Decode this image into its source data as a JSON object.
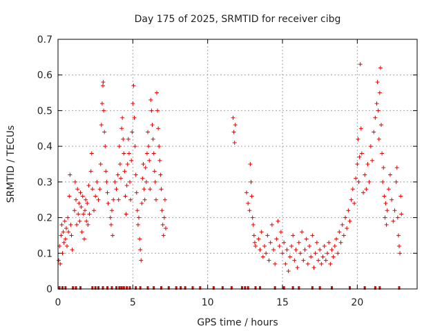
{
  "chart_data": {
    "type": "scatter",
    "title": "Day 175 of 2025, SRMTID for receiver cibg",
    "xlabel": "GPS time / hours",
    "ylabel": "SRMTID / TECUs",
    "xlim": [
      0,
      24
    ],
    "ylim": [
      0,
      0.7
    ],
    "xticks": [
      0,
      5,
      10,
      15,
      20
    ],
    "xtick_labels": [
      "0",
      "5",
      "10",
      "15",
      "20"
    ],
    "yticks": [
      0,
      0.1,
      0.2,
      0.3,
      0.4,
      0.5,
      0.6,
      0.7
    ],
    "ytick_labels": [
      "0",
      "0.1",
      "0.2",
      "0.3",
      "0.4",
      "0.5",
      "0.6",
      "0.7"
    ],
    "grid": true,
    "marker": "plus",
    "color": "#e00000",
    "series": [
      {
        "name": "SRMTID",
        "points": [
          [
            0.05,
            0.08
          ],
          [
            0.1,
            0.12
          ],
          [
            0.15,
            0.07
          ],
          [
            0.2,
            0.15
          ],
          [
            0.25,
            0.18
          ],
          [
            0.3,
            0.1
          ],
          [
            0.35,
            0.16
          ],
          [
            0.4,
            0.13
          ],
          [
            0.45,
            0.19
          ],
          [
            0.5,
            0.14
          ],
          [
            0.55,
            0.17
          ],
          [
            0.6,
            0.12
          ],
          [
            0.65,
            0.2
          ],
          [
            0.7,
            0.16
          ],
          [
            0.75,
            0.26
          ],
          [
            0.8,
            0.32
          ],
          [
            0.85,
            0.18
          ],
          [
            0.9,
            0.15
          ],
          [
            0.95,
            0.11
          ],
          [
            1.1,
            0.22
          ],
          [
            1.15,
            0.3
          ],
          [
            1.2,
            0.25
          ],
          [
            1.25,
            0.18
          ],
          [
            1.3,
            0.28
          ],
          [
            1.35,
            0.21
          ],
          [
            1.4,
            0.24
          ],
          [
            1.45,
            0.19
          ],
          [
            1.5,
            0.27
          ],
          [
            1.55,
            0.23
          ],
          [
            1.6,
            0.16
          ],
          [
            1.65,
            0.26
          ],
          [
            1.7,
            0.21
          ],
          [
            1.75,
            0.14
          ],
          [
            1.8,
            0.22
          ],
          [
            1.85,
            0.25
          ],
          [
            1.9,
            0.19
          ],
          [
            1.95,
            0.24
          ],
          [
            2.0,
            0.18
          ],
          [
            2.05,
            0.29
          ],
          [
            2.1,
            0.21
          ],
          [
            2.2,
            0.33
          ],
          [
            2.25,
            0.38
          ],
          [
            2.3,
            0.28
          ],
          [
            2.4,
            0.22
          ],
          [
            2.5,
            0.26
          ],
          [
            2.6,
            0.3
          ],
          [
            2.7,
            0.25
          ],
          [
            2.8,
            0.28
          ],
          [
            2.85,
            0.35
          ],
          [
            2.9,
            0.46
          ],
          [
            2.95,
            0.52
          ],
          [
            3.0,
            0.57
          ],
          [
            3.02,
            0.58
          ],
          [
            3.05,
            0.5
          ],
          [
            3.1,
            0.44
          ],
          [
            3.15,
            0.4
          ],
          [
            3.2,
            0.33
          ],
          [
            3.25,
            0.3
          ],
          [
            3.3,
            0.27
          ],
          [
            3.35,
            0.24
          ],
          [
            3.5,
            0.2
          ],
          [
            3.55,
            0.18
          ],
          [
            3.6,
            0.22
          ],
          [
            3.65,
            0.15
          ],
          [
            3.7,
            0.25
          ],
          [
            3.8,
            0.3
          ],
          [
            3.9,
            0.28
          ],
          [
            4.0,
            0.32
          ],
          [
            4.05,
            0.25
          ],
          [
            4.1,
            0.4
          ],
          [
            4.15,
            0.35
          ],
          [
            4.2,
            0.31
          ],
          [
            4.25,
            0.45
          ],
          [
            4.3,
            0.48
          ],
          [
            4.35,
            0.42
          ],
          [
            4.4,
            0.38
          ],
          [
            4.45,
            0.33
          ],
          [
            4.5,
            0.26
          ],
          [
            4.55,
            0.21
          ],
          [
            4.6,
            0.29
          ],
          [
            4.65,
            0.35
          ],
          [
            4.7,
            0.42
          ],
          [
            4.75,
            0.38
          ],
          [
            4.8,
            0.3
          ],
          [
            4.85,
            0.25
          ],
          [
            4.9,
            0.36
          ],
          [
            4.95,
            0.44
          ],
          [
            5.0,
            0.52
          ],
          [
            5.05,
            0.57
          ],
          [
            5.1,
            0.48
          ],
          [
            5.15,
            0.4
          ],
          [
            5.2,
            0.32
          ],
          [
            5.25,
            0.27
          ],
          [
            5.3,
            0.22
          ],
          [
            5.35,
            0.18
          ],
          [
            5.4,
            0.2
          ],
          [
            5.45,
            0.14
          ],
          [
            5.5,
            0.11
          ],
          [
            5.55,
            0.08
          ],
          [
            5.6,
            0.24
          ],
          [
            5.65,
            0.31
          ],
          [
            5.7,
            0.35
          ],
          [
            5.75,
            0.28
          ],
          [
            5.8,
            0.25
          ],
          [
            5.85,
            0.34
          ],
          [
            5.9,
            0.3
          ],
          [
            5.95,
            0.38
          ],
          [
            6.0,
            0.44
          ],
          [
            6.05,
            0.4
          ],
          [
            6.1,
            0.36
          ],
          [
            6.15,
            0.28
          ],
          [
            6.2,
            0.53
          ],
          [
            6.25,
            0.5
          ],
          [
            6.3,
            0.46
          ],
          [
            6.35,
            0.42
          ],
          [
            6.4,
            0.38
          ],
          [
            6.45,
            0.33
          ],
          [
            6.5,
            0.3
          ],
          [
            6.55,
            0.25
          ],
          [
            6.6,
            0.55
          ],
          [
            6.65,
            0.5
          ],
          [
            6.7,
            0.45
          ],
          [
            6.75,
            0.4
          ],
          [
            6.8,
            0.36
          ],
          [
            6.85,
            0.32
          ],
          [
            6.9,
            0.28
          ],
          [
            6.95,
            0.22
          ],
          [
            7.0,
            0.18
          ],
          [
            7.05,
            0.15
          ],
          [
            7.1,
            0.2
          ],
          [
            7.15,
            0.25
          ],
          [
            7.2,
            0.17
          ],
          [
            11.7,
            0.48
          ],
          [
            11.75,
            0.44
          ],
          [
            11.8,
            0.41
          ],
          [
            11.85,
            0.46
          ],
          [
            12.6,
            0.27
          ],
          [
            12.7,
            0.24
          ],
          [
            12.8,
            0.22
          ],
          [
            12.85,
            0.35
          ],
          [
            12.9,
            0.3
          ],
          [
            12.95,
            0.26
          ],
          [
            13.0,
            0.2
          ],
          [
            13.05,
            0.18
          ],
          [
            13.1,
            0.15
          ],
          [
            13.15,
            0.13
          ],
          [
            13.2,
            0.12
          ],
          [
            13.4,
            0.14
          ],
          [
            13.5,
            0.11
          ],
          [
            13.6,
            0.16
          ],
          [
            13.7,
            0.09
          ],
          [
            13.8,
            0.12
          ],
          [
            13.9,
            0.1
          ],
          [
            14.0,
            0.15
          ],
          [
            14.1,
            0.08
          ],
          [
            14.2,
            0.13
          ],
          [
            14.3,
            0.18
          ],
          [
            14.4,
            0.11
          ],
          [
            14.5,
            0.07
          ],
          [
            14.6,
            0.14
          ],
          [
            14.7,
            0.19
          ],
          [
            14.8,
            0.12
          ],
          [
            14.9,
            0.16
          ],
          [
            15.0,
            0.1
          ],
          [
            15.1,
            0.13
          ],
          [
            15.2,
            0.07
          ],
          [
            15.3,
            0.11
          ],
          [
            15.4,
            0.05
          ],
          [
            15.5,
            0.09
          ],
          [
            15.6,
            0.12
          ],
          [
            15.7,
            0.15
          ],
          [
            15.8,
            0.08
          ],
          [
            15.9,
            0.11
          ],
          [
            16.0,
            0.06
          ],
          [
            16.1,
            0.13
          ],
          [
            16.2,
            0.1
          ],
          [
            16.3,
            0.16
          ],
          [
            16.4,
            0.08
          ],
          [
            16.5,
            0.11
          ],
          [
            16.6,
            0.14
          ],
          [
            16.7,
            0.07
          ],
          [
            16.8,
            0.12
          ],
          [
            16.9,
            0.09
          ],
          [
            17.0,
            0.15
          ],
          [
            17.1,
            0.06
          ],
          [
            17.2,
            0.1
          ],
          [
            17.3,
            0.13
          ],
          [
            17.4,
            0.08
          ],
          [
            17.5,
            0.11
          ],
          [
            17.6,
            0.07
          ],
          [
            17.7,
            0.09
          ],
          [
            17.8,
            0.12
          ],
          [
            17.9,
            0.08
          ],
          [
            18.0,
            0.1
          ],
          [
            18.1,
            0.13
          ],
          [
            18.2,
            0.07
          ],
          [
            18.3,
            0.11
          ],
          [
            18.4,
            0.09
          ],
          [
            18.5,
            0.12
          ],
          [
            18.6,
            0.14
          ],
          [
            18.7,
            0.1
          ],
          [
            18.8,
            0.16
          ],
          [
            18.9,
            0.13
          ],
          [
            19.0,
            0.18
          ],
          [
            19.1,
            0.15
          ],
          [
            19.2,
            0.2
          ],
          [
            19.3,
            0.17
          ],
          [
            19.4,
            0.22
          ],
          [
            19.5,
            0.19
          ],
          [
            19.6,
            0.25
          ],
          [
            19.7,
            0.28
          ],
          [
            19.8,
            0.24
          ],
          [
            19.9,
            0.31
          ],
          [
            20.0,
            0.35
          ],
          [
            20.05,
            0.42
          ],
          [
            20.1,
            0.3
          ],
          [
            20.15,
            0.37
          ],
          [
            20.2,
            0.63
          ],
          [
            20.25,
            0.45
          ],
          [
            20.3,
            0.38
          ],
          [
            20.4,
            0.27
          ],
          [
            20.5,
            0.32
          ],
          [
            20.6,
            0.28
          ],
          [
            20.7,
            0.35
          ],
          [
            20.8,
            0.3
          ],
          [
            20.9,
            0.4
          ],
          [
            21.0,
            0.36
          ],
          [
            21.1,
            0.44
          ],
          [
            21.2,
            0.48
          ],
          [
            21.3,
            0.52
          ],
          [
            21.35,
            0.58
          ],
          [
            21.4,
            0.5
          ],
          [
            21.45,
            0.42
          ],
          [
            21.5,
            0.55
          ],
          [
            21.55,
            0.62
          ],
          [
            21.6,
            0.46
          ],
          [
            21.65,
            0.38
          ],
          [
            21.7,
            0.3
          ],
          [
            21.75,
            0.34
          ],
          [
            21.8,
            0.26
          ],
          [
            21.85,
            0.2
          ],
          [
            21.9,
            0.24
          ],
          [
            21.95,
            0.18
          ],
          [
            22.0,
            0.22
          ],
          [
            22.1,
            0.28
          ],
          [
            22.2,
            0.32
          ],
          [
            22.3,
            0.25
          ],
          [
            22.4,
            0.19
          ],
          [
            22.5,
            0.22
          ],
          [
            22.6,
            0.3
          ],
          [
            22.65,
            0.34
          ],
          [
            22.7,
            0.2
          ],
          [
            22.75,
            0.15
          ],
          [
            22.8,
            0.12
          ],
          [
            22.85,
            0.1
          ],
          [
            22.9,
            0.26
          ],
          [
            22.95,
            0.21
          ]
        ]
      }
    ],
    "baseline_markers_x": [
      0.1,
      0.3,
      0.5,
      1.0,
      1.2,
      1.5,
      2.3,
      2.5,
      2.7,
      3.0,
      3.3,
      3.6,
      3.9,
      4.1,
      4.25,
      4.4,
      4.6,
      4.8,
      5.2,
      5.5,
      6.0,
      6.4,
      6.9,
      7.4,
      7.9,
      8.2,
      8.5,
      9.0,
      9.5,
      10.4,
      11.0,
      11.6,
      12.3,
      12.5,
      12.7,
      13.2,
      13.5,
      14.5,
      15.1,
      15.7,
      16.1,
      17.0,
      17.5,
      18.3,
      19.5,
      20.5,
      21.2,
      21.5,
      22.8
    ]
  }
}
